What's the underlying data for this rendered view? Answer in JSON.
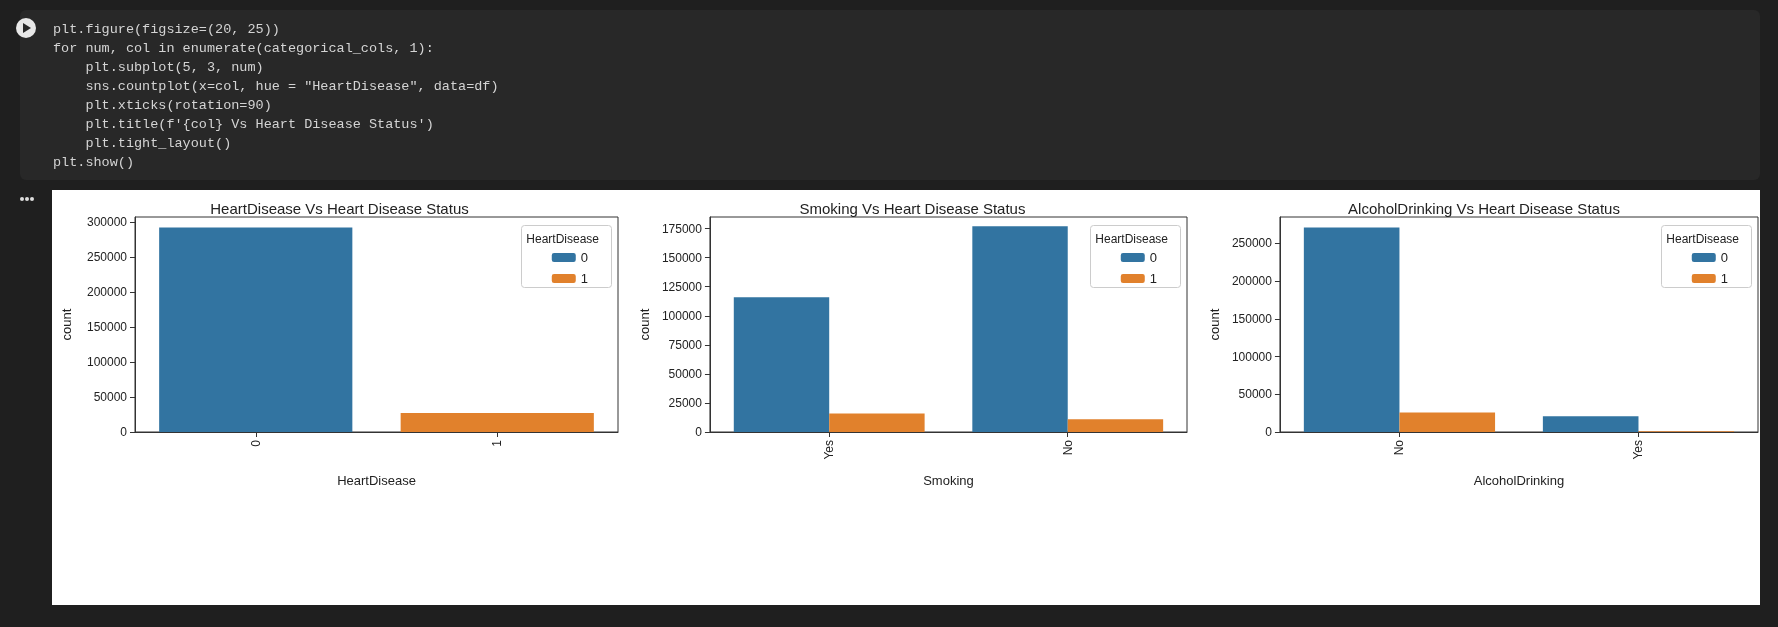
{
  "chart_data": [
    {
      "type": "other",
      "annotations": [
        "plt.figure(figsize=(20, 25))",
        "for num, col in enumerate(categorical_cols, 1):",
        "    plt.subplot(5, 3, num)",
        "    sns.countplot(x=col, hue = \"HeartDisease\", data=df)",
        "    plt.xticks(rotation=90)",
        "    plt.title(f'{col} Vs Heart Disease Status')",
        "    plt.tight_layout()",
        "plt.show()"
      ]
    },
    {
      "type": "bar",
      "title": "HeartDisease Vs Heart Disease Status",
      "xlabel": "HeartDisease",
      "ylabel": "count",
      "legend_title": "HeartDisease",
      "legend": "top right",
      "grid": false,
      "categories": [
        "0",
        "1"
      ],
      "series": [
        {
          "name": "0",
          "color": "#3274a1",
          "values": [
            292000,
            null
          ]
        },
        {
          "name": "1",
          "color": "#e1812c",
          "values": [
            null,
            27000
          ]
        }
      ],
      "ylim": [
        0,
        307000
      ],
      "yticks": [
        0,
        50000,
        100000,
        150000,
        200000,
        250000,
        300000
      ]
    },
    {
      "type": "bar",
      "title": "Smoking Vs Heart Disease Status",
      "xlabel": "Smoking",
      "ylabel": "count",
      "legend_title": "HeartDisease",
      "legend": "top right",
      "grid": false,
      "categories": [
        "Yes",
        "No"
      ],
      "series": [
        {
          "name": "0",
          "color": "#3274a1",
          "values": [
            116000,
            177000
          ]
        },
        {
          "name": "1",
          "color": "#e1812c",
          "values": [
            16000,
            11000
          ]
        }
      ],
      "ylim": [
        0,
        185000
      ],
      "yticks": [
        0,
        25000,
        50000,
        75000,
        100000,
        125000,
        150000,
        175000
      ]
    },
    {
      "type": "bar",
      "title": "AlcoholDrinking Vs Heart Disease Status",
      "xlabel": "AlcoholDrinking",
      "ylabel": "count",
      "legend_title": "HeartDisease",
      "legend": "top right",
      "grid": false,
      "categories": [
        "No",
        "Yes"
      ],
      "series": [
        {
          "name": "0",
          "color": "#3274a1",
          "values": [
            271000,
            21000
          ]
        },
        {
          "name": "1",
          "color": "#e1812c",
          "values": [
            26000,
            1000
          ]
        }
      ],
      "ylim": [
        0,
        285000
      ],
      "yticks": [
        0,
        50000,
        100000,
        150000,
        200000,
        250000
      ]
    }
  ]
}
